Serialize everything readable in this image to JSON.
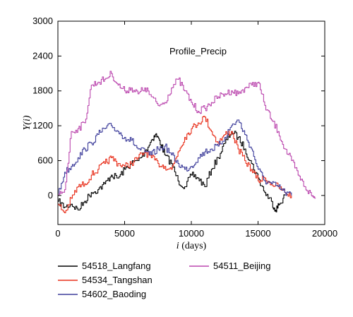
{
  "chart_data": {
    "type": "line",
    "annotation": "Profile_Precip",
    "xlabel_var": "i",
    "xlabel_unit": " (days)",
    "ylabel_var": "Y",
    "ylabel_arg": "(i)",
    "xlim": [
      0,
      20000
    ],
    "ylim": [
      -500,
      3000
    ],
    "xticks": [
      0,
      5000,
      10000,
      15000,
      20000
    ],
    "yticks": [
      0,
      600,
      1200,
      1800,
      2400,
      3000
    ],
    "grid": false,
    "legend_position": "bottom",
    "series": [
      {
        "name": "54518_Langfang",
        "color": "#000000",
        "x": [
          0,
          500,
          1000,
          1500,
          2000,
          2500,
          3000,
          3500,
          4000,
          4500,
          5000,
          5500,
          6000,
          6500,
          7000,
          7300,
          7600,
          8000,
          8500,
          9000,
          9500,
          10000,
          10500,
          11000,
          11500,
          12000,
          12500,
          13000,
          13500,
          14000,
          14500,
          15000,
          15500,
          16000,
          16300,
          16600,
          17000
        ],
        "y": [
          -100,
          -200,
          -150,
          -250,
          -100,
          50,
          100,
          200,
          350,
          300,
          450,
          550,
          600,
          750,
          950,
          1050,
          950,
          700,
          550,
          250,
          150,
          350,
          300,
          150,
          450,
          650,
          900,
          1100,
          1000,
          800,
          550,
          300,
          50,
          -100,
          -250,
          -150,
          0
        ]
      },
      {
        "name": "54534_Tangshan",
        "color": "#e8301c",
        "x": [
          0,
          500,
          1000,
          1500,
          2000,
          2500,
          3000,
          3500,
          4000,
          4500,
          5000,
          5500,
          6000,
          6500,
          7000,
          7500,
          8000,
          8500,
          9000,
          9500,
          10000,
          10500,
          11000,
          11500,
          12000,
          12500,
          13000,
          13500,
          14000,
          14500,
          15000,
          15500,
          16000,
          16500,
          17000,
          17500
        ],
        "y": [
          -150,
          -300,
          -50,
          150,
          200,
          350,
          450,
          550,
          650,
          550,
          500,
          550,
          650,
          750,
          650,
          550,
          500,
          450,
          750,
          1000,
          1150,
          1250,
          1350,
          1100,
          900,
          1050,
          1100,
          800,
          600,
          450,
          250,
          300,
          200,
          150,
          50,
          0
        ]
      },
      {
        "name": "54602_Baoding",
        "color": "#3e3e9b",
        "x": [
          0,
          500,
          1000,
          1500,
          2000,
          2500,
          3000,
          3500,
          4000,
          4500,
          5000,
          5500,
          6000,
          6500,
          7000,
          7500,
          8000,
          8500,
          9000,
          9500,
          10000,
          10500,
          11000,
          11500,
          12000,
          12500,
          13000,
          13500,
          14000,
          14500,
          15000,
          15500,
          16000,
          16500,
          17000,
          17500
        ],
        "y": [
          0,
          400,
          500,
          650,
          800,
          900,
          1050,
          1150,
          1200,
          1100,
          1000,
          950,
          800,
          750,
          700,
          800,
          850,
          700,
          550,
          450,
          500,
          650,
          750,
          800,
          850,
          1000,
          1200,
          1300,
          1050,
          800,
          450,
          250,
          200,
          150,
          50,
          0
        ]
      },
      {
        "name": "54511_Beijing",
        "color": "#bb47ae",
        "x": [
          0,
          500,
          1000,
          1500,
          2000,
          2500,
          3000,
          3500,
          4000,
          4500,
          5000,
          5500,
          6000,
          6500,
          7000,
          7500,
          8000,
          8500,
          9000,
          9500,
          10000,
          10500,
          11000,
          11500,
          12000,
          12500,
          13000,
          13500,
          14000,
          14500,
          15000,
          15500,
          16000,
          16500,
          17000,
          17500,
          18000,
          18500,
          19000,
          19300
        ],
        "y": [
          0,
          100,
          1100,
          1150,
          1250,
          1900,
          1950,
          2000,
          2100,
          1900,
          1800,
          1850,
          1750,
          1850,
          1700,
          1550,
          1600,
          1850,
          2000,
          1800,
          1600,
          1450,
          1500,
          1600,
          1700,
          1750,
          1800,
          1750,
          1850,
          1900,
          1950,
          1550,
          1300,
          1100,
          800,
          600,
          350,
          150,
          0,
          -50
        ]
      }
    ]
  }
}
